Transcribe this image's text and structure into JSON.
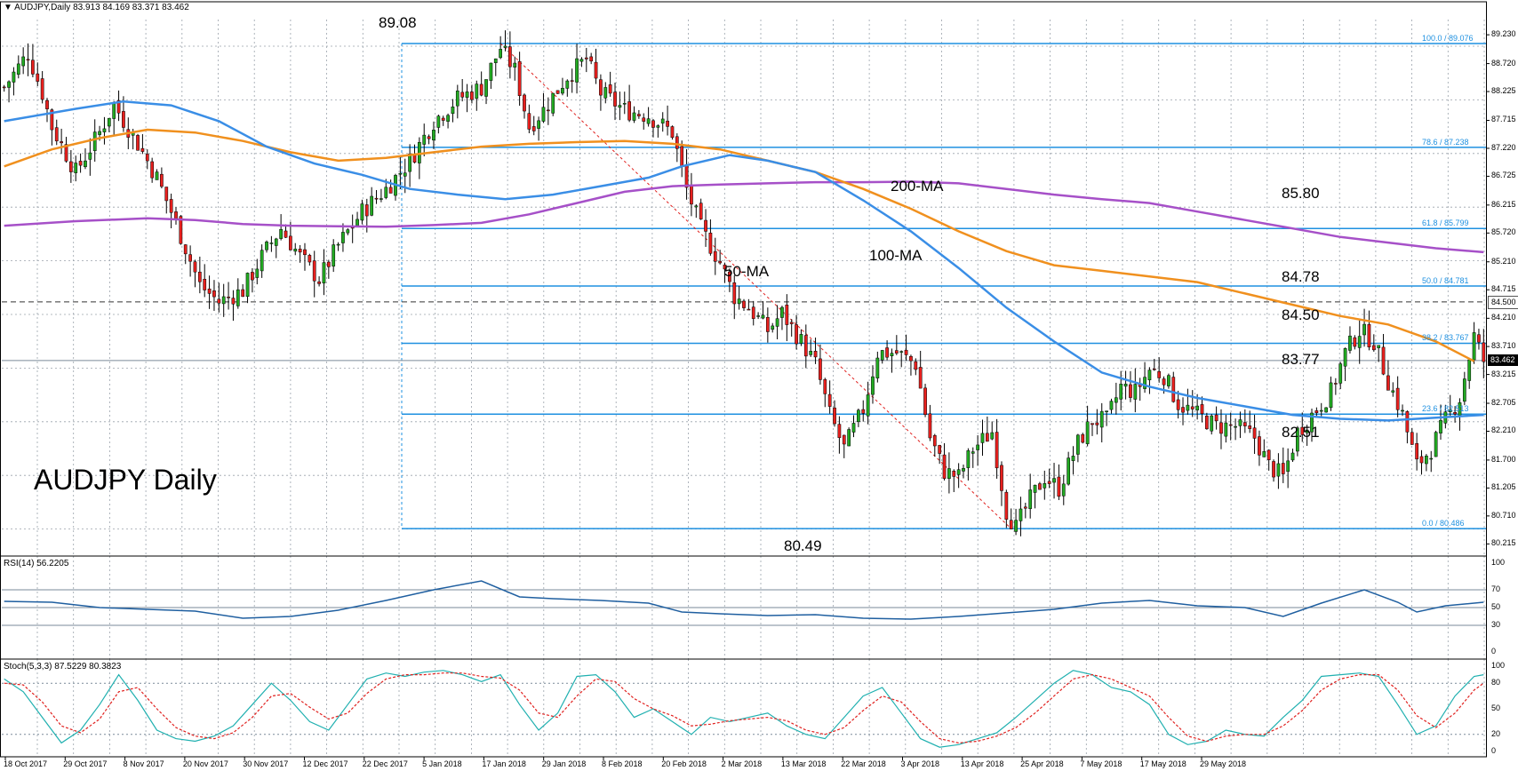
{
  "chart_data": {
    "type": "candlestick",
    "symbol_header": "AUDJPY,Daily",
    "ohlc_header": "83.913 84.169 83.371 83.462",
    "title": "AUDJPY Daily",
    "price_axis": {
      "ylim": [
        80.0,
        89.5
      ],
      "ticks": [
        "89.230",
        "88.720",
        "88.225",
        "87.715",
        "87.220",
        "86.725",
        "86.215",
        "85.720",
        "85.210",
        "84.715",
        "84.210",
        "83.710",
        "83.215",
        "82.705",
        "82.210",
        "81.700",
        "81.205",
        "80.710",
        "80.215"
      ]
    },
    "date_labels": [
      "18 Oct 2017",
      "29 Oct 2017",
      "8 Nov 2017",
      "20 Nov 2017",
      "30 Nov 2017",
      "12 Dec 2017",
      "22 Dec 2017",
      "5 Jan 2018",
      "17 Jan 2018",
      "29 Jan 2018",
      "8 Feb 2018",
      "20 Feb 2018",
      "2 Mar 2018",
      "13 Mar 2018",
      "22 Mar 2018",
      "3 Apr 2018",
      "13 Apr 2018",
      "25 Apr 2018",
      "7 May 2018",
      "17 May 2018",
      "29 May 2018"
    ],
    "high_label": "89.08",
    "low_label": "80.49",
    "fib_levels": [
      {
        "label": "100.0 / 89.076",
        "value": 89.076
      },
      {
        "label": "78.6 / 87.238",
        "value": 87.238
      },
      {
        "label": "61.8 / 85.799",
        "value": 85.799
      },
      {
        "label": "50.0 / 84.781",
        "value": 84.781
      },
      {
        "label": "38.2 / 83.767",
        "value": 83.767
      },
      {
        "label": "23.6 / 82.513",
        "value": 82.513
      },
      {
        "label": "0.0 / 80.486",
        "value": 80.486
      }
    ],
    "level_labels": [
      "85.80",
      "84.78",
      "84.50",
      "83.77",
      "82.51"
    ],
    "dashed_level": {
      "value": 84.5,
      "tag": "84.500"
    },
    "current_price": {
      "value": 83.462,
      "tag": "83.462"
    },
    "ma_labels": [
      "50-MA",
      "100-MA",
      "200-MA"
    ],
    "ma_colors": {
      "ma50": "#3a8ee6",
      "ma100": "#f0901e",
      "ma200": "#a650c8"
    },
    "ma50": [
      [
        0,
        87.7
      ],
      [
        15,
        87.92
      ],
      [
        25,
        88.05
      ],
      [
        35,
        87.98
      ],
      [
        45,
        87.7
      ],
      [
        55,
        87.25
      ],
      [
        65,
        86.95
      ],
      [
        75,
        86.75
      ],
      [
        85,
        86.5
      ],
      [
        95,
        86.4
      ],
      [
        105,
        86.32
      ],
      [
        115,
        86.4
      ],
      [
        125,
        86.55
      ],
      [
        135,
        86.7
      ],
      [
        142,
        86.9
      ],
      [
        152,
        87.1
      ],
      [
        160,
        87.0
      ],
      [
        170,
        86.8
      ],
      [
        180,
        86.3
      ],
      [
        190,
        85.75
      ],
      [
        200,
        85.1
      ],
      [
        210,
        84.4
      ],
      [
        220,
        83.8
      ],
      [
        230,
        83.25
      ],
      [
        240,
        83.0
      ],
      [
        250,
        82.8
      ],
      [
        260,
        82.65
      ],
      [
        270,
        82.5
      ],
      [
        280,
        82.43
      ],
      [
        290,
        82.4
      ],
      [
        300,
        82.45
      ],
      [
        310,
        82.5
      ]
    ],
    "ma100": [
      [
        0,
        86.9
      ],
      [
        10,
        87.2
      ],
      [
        20,
        87.4
      ],
      [
        30,
        87.55
      ],
      [
        40,
        87.5
      ],
      [
        50,
        87.35
      ],
      [
        60,
        87.15
      ],
      [
        70,
        87.0
      ],
      [
        80,
        87.05
      ],
      [
        90,
        87.15
      ],
      [
        100,
        87.25
      ],
      [
        110,
        87.3
      ],
      [
        120,
        87.33
      ],
      [
        130,
        87.35
      ],
      [
        140,
        87.3
      ],
      [
        150,
        87.2
      ],
      [
        160,
        87.0
      ],
      [
        170,
        86.8
      ],
      [
        180,
        86.5
      ],
      [
        190,
        86.15
      ],
      [
        200,
        85.75
      ],
      [
        210,
        85.4
      ],
      [
        220,
        85.15
      ],
      [
        230,
        85.05
      ],
      [
        240,
        84.95
      ],
      [
        250,
        84.85
      ],
      [
        260,
        84.65
      ],
      [
        270,
        84.45
      ],
      [
        280,
        84.25
      ],
      [
        290,
        84.1
      ],
      [
        300,
        83.8
      ],
      [
        308,
        83.45
      ]
    ],
    "ma200": [
      [
        0,
        85.85
      ],
      [
        15,
        85.93
      ],
      [
        30,
        85.98
      ],
      [
        40,
        85.95
      ],
      [
        50,
        85.88
      ],
      [
        60,
        85.85
      ],
      [
        70,
        85.84
      ],
      [
        80,
        85.83
      ],
      [
        90,
        85.86
      ],
      [
        100,
        85.9
      ],
      [
        110,
        86.05
      ],
      [
        120,
        86.25
      ],
      [
        130,
        86.45
      ],
      [
        140,
        86.55
      ],
      [
        150,
        86.58
      ],
      [
        160,
        86.6
      ],
      [
        170,
        86.62
      ],
      [
        180,
        86.62
      ],
      [
        190,
        86.63
      ],
      [
        200,
        86.6
      ],
      [
        210,
        86.5
      ],
      [
        220,
        86.4
      ],
      [
        230,
        86.32
      ],
      [
        240,
        86.25
      ],
      [
        250,
        86.1
      ],
      [
        260,
        85.95
      ],
      [
        270,
        85.8
      ],
      [
        280,
        85.65
      ],
      [
        290,
        85.55
      ],
      [
        300,
        85.45
      ],
      [
        310,
        85.38
      ]
    ],
    "fib_diag": [
      [
        104,
        89.076
      ],
      [
        211,
        80.486
      ]
    ],
    "rsi": {
      "header": "RSI(14) 56.2205",
      "levels": [
        70,
        50,
        30
      ],
      "ticks": [
        "100",
        "70",
        "50",
        "30",
        "0"
      ],
      "points": [
        [
          0,
          57
        ],
        [
          10,
          56
        ],
        [
          20,
          50
        ],
        [
          30,
          48
        ],
        [
          40,
          46
        ],
        [
          50,
          38
        ],
        [
          60,
          40
        ],
        [
          70,
          47
        ],
        [
          80,
          58
        ],
        [
          90,
          70
        ],
        [
          100,
          80
        ],
        [
          108,
          62
        ],
        [
          115,
          60
        ],
        [
          125,
          58
        ],
        [
          135,
          55
        ],
        [
          142,
          45
        ],
        [
          150,
          43
        ],
        [
          160,
          41
        ],
        [
          170,
          42
        ],
        [
          180,
          38
        ],
        [
          190,
          37
        ],
        [
          200,
          40
        ],
        [
          210,
          44
        ],
        [
          220,
          48
        ],
        [
          230,
          55
        ],
        [
          240,
          58
        ],
        [
          250,
          52
        ],
        [
          260,
          50
        ],
        [
          268,
          40
        ],
        [
          276,
          55
        ],
        [
          285,
          70
        ],
        [
          292,
          56
        ],
        [
          296,
          45
        ],
        [
          302,
          52
        ],
        [
          310,
          56
        ]
      ]
    },
    "stoch": {
      "header": "Stoch(5,3,3) 87.5229 80.3823",
      "levels": [
        80,
        20
      ],
      "ticks": [
        "100",
        "80",
        "50",
        "20",
        "0"
      ],
      "k": [
        [
          0,
          85
        ],
        [
          4,
          70
        ],
        [
          8,
          40
        ],
        [
          12,
          10
        ],
        [
          16,
          25
        ],
        [
          20,
          55
        ],
        [
          24,
          90
        ],
        [
          28,
          60
        ],
        [
          32,
          25
        ],
        [
          36,
          15
        ],
        [
          40,
          12
        ],
        [
          44,
          18
        ],
        [
          48,
          30
        ],
        [
          52,
          55
        ],
        [
          56,
          80
        ],
        [
          60,
          60
        ],
        [
          64,
          35
        ],
        [
          68,
          25
        ],
        [
          72,
          55
        ],
        [
          76,
          85
        ],
        [
          80,
          92
        ],
        [
          84,
          88
        ],
        [
          88,
          93
        ],
        [
          92,
          95
        ],
        [
          96,
          90
        ],
        [
          100,
          82
        ],
        [
          104,
          90
        ],
        [
          108,
          55
        ],
        [
          112,
          25
        ],
        [
          116,
          45
        ],
        [
          120,
          88
        ],
        [
          124,
          90
        ],
        [
          128,
          70
        ],
        [
          132,
          40
        ],
        [
          136,
          50
        ],
        [
          140,
          35
        ],
        [
          144,
          20
        ],
        [
          148,
          40
        ],
        [
          152,
          35
        ],
        [
          156,
          40
        ],
        [
          160,
          45
        ],
        [
          164,
          30
        ],
        [
          168,
          20
        ],
        [
          172,
          15
        ],
        [
          176,
          40
        ],
        [
          180,
          65
        ],
        [
          184,
          75
        ],
        [
          188,
          45
        ],
        [
          192,
          15
        ],
        [
          196,
          5
        ],
        [
          200,
          8
        ],
        [
          204,
          15
        ],
        [
          208,
          22
        ],
        [
          212,
          40
        ],
        [
          216,
          60
        ],
        [
          220,
          80
        ],
        [
          224,
          95
        ],
        [
          228,
          90
        ],
        [
          232,
          75
        ],
        [
          236,
          70
        ],
        [
          240,
          55
        ],
        [
          244,
          20
        ],
        [
          248,
          8
        ],
        [
          252,
          12
        ],
        [
          256,
          25
        ],
        [
          260,
          20
        ],
        [
          264,
          18
        ],
        [
          268,
          40
        ],
        [
          272,
          60
        ],
        [
          276,
          88
        ],
        [
          280,
          90
        ],
        [
          284,
          92
        ],
        [
          288,
          88
        ],
        [
          292,
          55
        ],
        [
          296,
          20
        ],
        [
          300,
          30
        ],
        [
          304,
          65
        ],
        [
          308,
          88
        ],
        [
          310,
          90
        ]
      ],
      "d": [
        [
          0,
          80
        ],
        [
          4,
          78
        ],
        [
          8,
          58
        ],
        [
          12,
          30
        ],
        [
          16,
          22
        ],
        [
          20,
          38
        ],
        [
          24,
          70
        ],
        [
          28,
          75
        ],
        [
          32,
          50
        ],
        [
          36,
          28
        ],
        [
          40,
          18
        ],
        [
          44,
          15
        ],
        [
          48,
          22
        ],
        [
          52,
          40
        ],
        [
          56,
          65
        ],
        [
          60,
          68
        ],
        [
          64,
          52
        ],
        [
          68,
          38
        ],
        [
          72,
          45
        ],
        [
          76,
          68
        ],
        [
          80,
          85
        ],
        [
          84,
          90
        ],
        [
          88,
          90
        ],
        [
          92,
          92
        ],
        [
          96,
          92
        ],
        [
          100,
          88
        ],
        [
          104,
          86
        ],
        [
          108,
          72
        ],
        [
          112,
          45
        ],
        [
          116,
          40
        ],
        [
          120,
          65
        ],
        [
          124,
          85
        ],
        [
          128,
          82
        ],
        [
          132,
          62
        ],
        [
          136,
          50
        ],
        [
          140,
          42
        ],
        [
          144,
          30
        ],
        [
          148,
          32
        ],
        [
          152,
          36
        ],
        [
          156,
          38
        ],
        [
          160,
          40
        ],
        [
          164,
          36
        ],
        [
          168,
          25
        ],
        [
          172,
          20
        ],
        [
          176,
          28
        ],
        [
          180,
          48
        ],
        [
          184,
          65
        ],
        [
          188,
          58
        ],
        [
          192,
          35
        ],
        [
          196,
          15
        ],
        [
          200,
          10
        ],
        [
          204,
          12
        ],
        [
          208,
          18
        ],
        [
          212,
          28
        ],
        [
          216,
          45
        ],
        [
          220,
          65
        ],
        [
          224,
          85
        ],
        [
          228,
          90
        ],
        [
          232,
          85
        ],
        [
          236,
          75
        ],
        [
          240,
          65
        ],
        [
          244,
          40
        ],
        [
          248,
          18
        ],
        [
          252,
          12
        ],
        [
          256,
          18
        ],
        [
          260,
          20
        ],
        [
          264,
          20
        ],
        [
          268,
          30
        ],
        [
          272,
          48
        ],
        [
          276,
          72
        ],
        [
          280,
          85
        ],
        [
          284,
          90
        ],
        [
          288,
          90
        ],
        [
          292,
          72
        ],
        [
          296,
          42
        ],
        [
          300,
          28
        ],
        [
          304,
          45
        ],
        [
          308,
          72
        ],
        [
          310,
          80
        ]
      ]
    }
  },
  "candles_seed": "approximate daily path",
  "path_keypoints": [
    [
      0,
      88.3
    ],
    [
      5,
      88.9
    ],
    [
      8,
      88.2
    ],
    [
      10,
      87.6
    ],
    [
      15,
      86.8
    ],
    [
      20,
      87.5
    ],
    [
      23,
      88.0
    ],
    [
      28,
      87.3
    ],
    [
      32,
      86.7
    ],
    [
      36,
      85.9
    ],
    [
      41,
      84.8
    ],
    [
      45,
      84.5
    ],
    [
      50,
      84.7
    ],
    [
      54,
      85.3
    ],
    [
      58,
      85.8
    ],
    [
      62,
      85.3
    ],
    [
      66,
      84.9
    ],
    [
      70,
      85.5
    ],
    [
      75,
      86.1
    ],
    [
      80,
      86.5
    ],
    [
      85,
      87.0
    ],
    [
      90,
      87.7
    ],
    [
      95,
      88.1
    ],
    [
      100,
      88.3
    ],
    [
      104,
      89.0
    ],
    [
      107,
      88.6
    ],
    [
      110,
      87.6
    ],
    [
      113,
      87.9
    ],
    [
      118,
      88.5
    ],
    [
      122,
      88.8
    ],
    [
      125,
      88.2
    ],
    [
      130,
      87.9
    ],
    [
      135,
      87.8
    ],
    [
      140,
      87.5
    ],
    [
      143,
      86.5
    ],
    [
      146,
      85.8
    ],
    [
      150,
      85.2
    ],
    [
      153,
      84.6
    ],
    [
      156,
      84.4
    ],
    [
      160,
      84.0
    ],
    [
      163,
      84.3
    ],
    [
      167,
      83.8
    ],
    [
      170,
      83.4
    ],
    [
      173,
      82.5
    ],
    [
      176,
      81.9
    ],
    [
      180,
      82.6
    ],
    [
      183,
      83.6
    ],
    [
      187,
      83.6
    ],
    [
      191,
      83.4
    ],
    [
      194,
      82.1
    ],
    [
      197,
      81.5
    ],
    [
      200,
      81.4
    ],
    [
      203,
      81.9
    ],
    [
      207,
      82.2
    ],
    [
      210,
      80.8
    ],
    [
      212,
      80.5
    ],
    [
      215,
      81.0
    ],
    [
      218,
      81.4
    ],
    [
      221,
      81.2
    ],
    [
      225,
      82.0
    ],
    [
      228,
      82.4
    ],
    [
      231,
      82.4
    ],
    [
      234,
      83.0
    ],
    [
      237,
      82.9
    ],
    [
      240,
      83.3
    ],
    [
      243,
      83.2
    ],
    [
      246,
      82.7
    ],
    [
      250,
      82.5
    ],
    [
      254,
      82.3
    ],
    [
      258,
      82.3
    ],
    [
      262,
      82.1
    ],
    [
      265,
      81.6
    ],
    [
      268,
      81.4
    ],
    [
      271,
      82.2
    ],
    [
      275,
      82.6
    ],
    [
      278,
      82.9
    ],
    [
      281,
      83.6
    ],
    [
      284,
      84.0
    ],
    [
      287,
      83.8
    ],
    [
      290,
      83.1
    ],
    [
      293,
      82.5
    ],
    [
      296,
      81.6
    ],
    [
      299,
      81.9
    ],
    [
      302,
      82.4
    ],
    [
      305,
      82.8
    ],
    [
      308,
      83.9
    ],
    [
      310,
      83.46
    ]
  ]
}
